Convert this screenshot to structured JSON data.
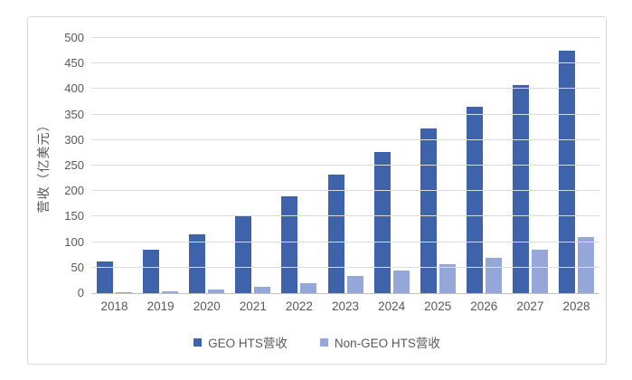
{
  "chart_data": {
    "type": "bar",
    "title": "",
    "categories": [
      "2018",
      "2019",
      "2020",
      "2021",
      "2022",
      "2023",
      "2024",
      "2025",
      "2026",
      "2027",
      "2028"
    ],
    "series": [
      {
        "name": "GEO HTS营收",
        "color": "#3e63ab",
        "values": [
          62,
          85,
          115,
          150,
          190,
          233,
          277,
          322,
          366,
          407,
          475
        ]
      },
      {
        "name": "Non-GEO HTS营收",
        "color": "#95a7d8",
        "values": [
          2,
          4,
          7,
          13,
          19,
          33,
          44,
          57,
          70,
          86,
          110
        ]
      }
    ],
    "xlabel": "",
    "ylabel": "营收（亿美元）",
    "ylim": [
      0,
      500
    ],
    "ytick_step": 50,
    "grid": true,
    "legend_position": "bottom",
    "colors": {
      "gridline": "#dcdcdc",
      "axis_line": "#bfbfbf",
      "text": "#595959",
      "card_border": "#d8d8d8"
    }
  }
}
